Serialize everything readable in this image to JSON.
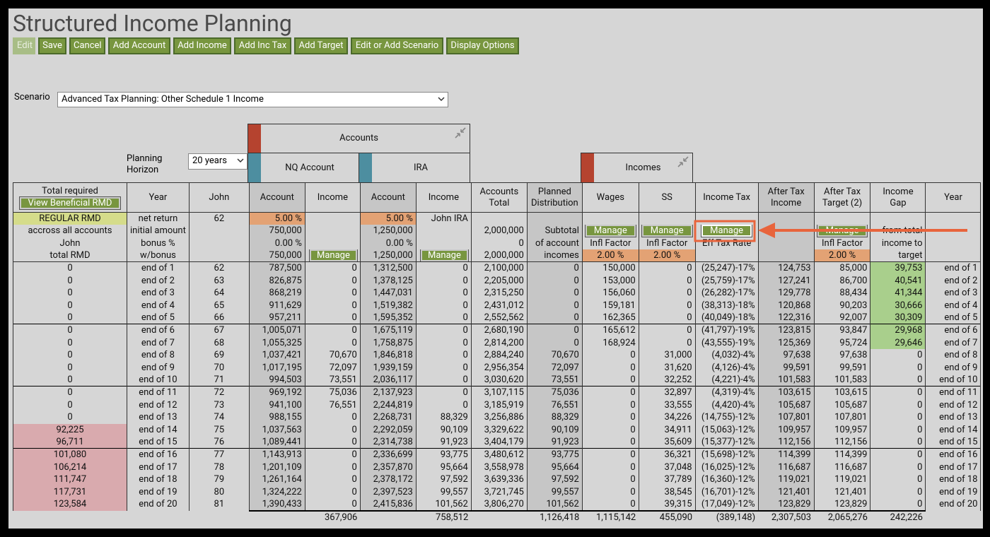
{
  "header": {
    "title": "Structured Income Planning",
    "toolbar": [
      "Edit",
      "Save",
      "Cancel",
      "Add Account",
      "Add Income",
      "Add Inc Tax",
      "Add Target",
      "Edit or Add Scenario",
      "Display Options"
    ]
  },
  "scenario": {
    "label": "Scenario",
    "value": "Advanced Tax Planning: Other Schedule 1 Income"
  },
  "planning_horizon": {
    "label": "Planning Horizon",
    "value": "20 years"
  },
  "groups": {
    "accounts": "Accounts",
    "nq_account": "NQ Account",
    "ira": "IRA",
    "incomes": "Incomes"
  },
  "table": {
    "columns": [
      "Total required",
      "Year",
      "John",
      "Account",
      "Income",
      "Account",
      "Income",
      "Accounts Total",
      "Planned Distribution",
      "Wages",
      "SS",
      "Income Tax",
      "After Tax Income",
      "After Tax Target (2)",
      "Income Gap",
      "Year"
    ],
    "rmd_button": "View Beneficial RMD",
    "setup_rows": [
      [
        "REGULAR RMD",
        "net return",
        "62",
        "5.00 %",
        null,
        "5.00 %",
        "John IRA",
        null,
        null,
        null,
        null,
        null,
        null,
        null,
        null,
        null
      ],
      [
        "accross all accounts",
        "initial amount",
        null,
        "750,000",
        null,
        "1,250,000",
        null,
        "2,000,000",
        "Subtotal",
        "Manage",
        "Manage",
        "Manage",
        null,
        "Manage",
        "from total",
        null
      ],
      [
        "John",
        "bonus %",
        null,
        "0.00 %",
        null,
        "0.00 %",
        null,
        "0",
        "of account",
        "Infl Factor",
        "Infl Factor",
        "Eff Tax Rate",
        null,
        "Infl Factor",
        "income to",
        null
      ],
      [
        "total RMD",
        "w/bonus",
        null,
        "750,000",
        "Manage",
        "1,250,000",
        "Manage",
        "2,000,000",
        "incomes",
        "2.00 %",
        "2.00 %",
        null,
        null,
        "2.00 %",
        "target",
        null
      ]
    ],
    "rows": [
      [
        "0",
        "end of 1",
        "62",
        "787,500",
        "0",
        "1,312,500",
        "0",
        "2,100,000",
        "0",
        "150,000",
        "0",
        "(25,247)-17%",
        "124,753",
        "85,000",
        "39,753",
        "end of 1"
      ],
      [
        "0",
        "end of 2",
        "63",
        "826,875",
        "0",
        "1,378,125",
        "0",
        "2,205,000",
        "0",
        "153,000",
        "0",
        "(25,759)-17%",
        "127,241",
        "86,700",
        "40,541",
        "end of 2"
      ],
      [
        "0",
        "end of 3",
        "64",
        "868,219",
        "0",
        "1,447,031",
        "0",
        "2,315,250",
        "0",
        "156,060",
        "0",
        "(26,282)-17%",
        "129,778",
        "88,434",
        "41,344",
        "end of 3"
      ],
      [
        "0",
        "end of 4",
        "65",
        "911,629",
        "0",
        "1,519,382",
        "0",
        "2,431,012",
        "0",
        "159,181",
        "0",
        "(38,313)-18%",
        "120,868",
        "90,203",
        "30,666",
        "end of 4"
      ],
      [
        "0",
        "end of 5",
        "66",
        "957,211",
        "0",
        "1,595,352",
        "0",
        "2,552,562",
        "0",
        "162,365",
        "0",
        "(40,049)-18%",
        "122,316",
        "92,007",
        "30,309",
        "end of 5"
      ],
      [
        "0",
        "end of 6",
        "67",
        "1,005,071",
        "0",
        "1,675,119",
        "0",
        "2,680,190",
        "0",
        "165,612",
        "0",
        "(41,797)-19%",
        "123,815",
        "93,847",
        "29,968",
        "end of 6"
      ],
      [
        "0",
        "end of 7",
        "68",
        "1,055,325",
        "0",
        "1,758,875",
        "0",
        "2,814,200",
        "0",
        "168,924",
        "0",
        "(43,555)-19%",
        "125,369",
        "95,724",
        "29,646",
        "end of 7"
      ],
      [
        "0",
        "end of 8",
        "69",
        "1,037,421",
        "70,670",
        "1,846,818",
        "0",
        "2,884,240",
        "70,670",
        "0",
        "31,000",
        "(4,032)-4%",
        "97,638",
        "97,638",
        "0",
        "end of 8"
      ],
      [
        "0",
        "end of 9",
        "70",
        "1,017,195",
        "72,097",
        "1,939,159",
        "0",
        "2,956,354",
        "72,097",
        "0",
        "31,620",
        "(4,126)-4%",
        "99,591",
        "99,591",
        "0",
        "end of 9"
      ],
      [
        "0",
        "end of 10",
        "71",
        "994,503",
        "73,551",
        "2,036,117",
        "0",
        "3,030,620",
        "73,551",
        "0",
        "32,252",
        "(4,221)-4%",
        "101,583",
        "101,583",
        "0",
        "end of 10"
      ],
      [
        "0",
        "end of 11",
        "72",
        "969,192",
        "75,036",
        "2,137,923",
        "0",
        "3,107,115",
        "75,036",
        "0",
        "32,897",
        "(4,319)-4%",
        "103,615",
        "103,615",
        "0",
        "end of 11"
      ],
      [
        "0",
        "end of 12",
        "73",
        "941,100",
        "76,551",
        "2,244,819",
        "0",
        "3,185,919",
        "76,551",
        "0",
        "33,555",
        "(4,420)-4%",
        "105,687",
        "105,687",
        "0",
        "end of 12"
      ],
      [
        "0",
        "end of 13",
        "74",
        "988,155",
        "0",
        "2,268,731",
        "88,329",
        "3,256,886",
        "88,329",
        "0",
        "34,226",
        "(14,755)-12%",
        "107,801",
        "107,801",
        "0",
        "end of 13"
      ],
      [
        "92,225",
        "end of 14",
        "75",
        "1,037,563",
        "0",
        "2,292,059",
        "90,109",
        "3,329,622",
        "90,109",
        "0",
        "34,911",
        "(15,063)-12%",
        "109,957",
        "109,957",
        "0",
        "end of 14"
      ],
      [
        "96,711",
        "end of 15",
        "76",
        "1,089,441",
        "0",
        "2,314,738",
        "91,923",
        "3,404,179",
        "91,923",
        "0",
        "35,609",
        "(15,377)-12%",
        "112,156",
        "112,156",
        "0",
        "end of 15"
      ],
      [
        "101,080",
        "end of 16",
        "77",
        "1,143,913",
        "0",
        "2,336,699",
        "93,775",
        "3,480,612",
        "93,775",
        "0",
        "36,321",
        "(15,698)-12%",
        "114,399",
        "114,399",
        "0",
        "end of 16"
      ],
      [
        "106,214",
        "end of 17",
        "78",
        "1,201,109",
        "0",
        "2,357,870",
        "95,664",
        "3,558,978",
        "95,664",
        "0",
        "37,048",
        "(16,025)-12%",
        "116,687",
        "116,687",
        "0",
        "end of 17"
      ],
      [
        "111,747",
        "end of 18",
        "79",
        "1,261,164",
        "0",
        "2,378,172",
        "97,592",
        "3,639,336",
        "97,592",
        "0",
        "37,789",
        "(16,360)-12%",
        "119,021",
        "119,021",
        "0",
        "end of 18"
      ],
      [
        "117,731",
        "end of 19",
        "80",
        "1,324,222",
        "0",
        "2,397,523",
        "99,557",
        "3,721,745",
        "99,557",
        "0",
        "38,545",
        "(16,701)-12%",
        "121,401",
        "121,401",
        "0",
        "end of 19"
      ],
      [
        "123,584",
        "end of 20",
        "81",
        "1,390,433",
        "0",
        "2,415,836",
        "101,562",
        "3,806,270",
        "101,562",
        "0",
        "39,315",
        "(17,049)-12%",
        "123,829",
        "123,829",
        "0",
        "end of 20"
      ]
    ],
    "totals": [
      null,
      null,
      null,
      null,
      "367,906",
      null,
      "758,512",
      null,
      "1,126,418",
      "1,115,142",
      "455,090",
      "(389,148)",
      "2,307,503",
      "2,065,276",
      "242,226",
      null
    ]
  }
}
